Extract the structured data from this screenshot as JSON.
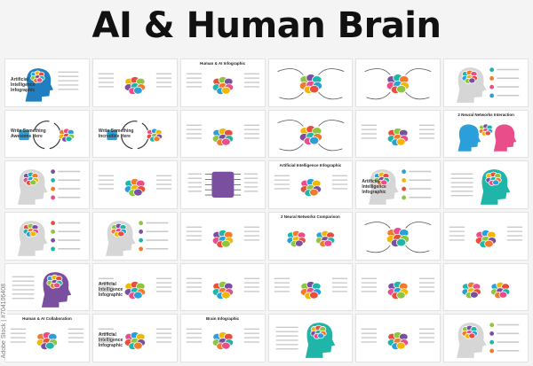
{
  "header": {
    "title": "AI & Human Brain"
  },
  "watermark": "Adobe Stock | #704106408",
  "palette": [
    "#2b9fd9",
    "#f2b705",
    "#e94e3c",
    "#8cc63f",
    "#7b4fa0",
    "#1fb5a8",
    "#f07b2a",
    "#e94d8a"
  ],
  "cells": [
    {
      "motif": "head-blue",
      "title": "",
      "side": "Artificial Intelligence Infographic"
    },
    {
      "motif": "brain-color",
      "title": "",
      "side": ""
    },
    {
      "motif": "brain-color",
      "title": "Human & AI Infographic",
      "side": ""
    },
    {
      "motif": "brain-center",
      "title": "",
      "side": ""
    },
    {
      "motif": "brain-center",
      "title": "",
      "side": ""
    },
    {
      "motif": "head-gray",
      "title": "",
      "side": ""
    },
    {
      "motif": "brain-circle",
      "title": "",
      "side": "Write Something Awesome Here"
    },
    {
      "motif": "brain-circle",
      "title": "",
      "side": "Write Something Incredible Here"
    },
    {
      "motif": "brain-color",
      "title": "",
      "side": ""
    },
    {
      "motif": "brain-center",
      "title": "",
      "side": ""
    },
    {
      "motif": "brain-color",
      "title": "",
      "side": ""
    },
    {
      "motif": "two-heads",
      "title": "2 Neural Networks Interaction",
      "side": ""
    },
    {
      "motif": "head-gray",
      "title": "",
      "side": ""
    },
    {
      "motif": "brain-color",
      "title": "",
      "side": ""
    },
    {
      "motif": "chip",
      "title": "",
      "side": ""
    },
    {
      "motif": "brain-color",
      "title": "Artificial Intelligence Infographic",
      "side": ""
    },
    {
      "motif": "head-gray",
      "title": "",
      "side": "Artificial Intelligence Infographic"
    },
    {
      "motif": "head-color",
      "title": "",
      "side": ""
    },
    {
      "motif": "head-gray",
      "title": "",
      "side": ""
    },
    {
      "motif": "head-gray",
      "title": "",
      "side": ""
    },
    {
      "motif": "brain-color",
      "title": "",
      "side": ""
    },
    {
      "motif": "two-brains",
      "title": "2 Neural Networks Comparison",
      "side": ""
    },
    {
      "motif": "brain-center",
      "title": "",
      "side": ""
    },
    {
      "motif": "brain-color",
      "title": "",
      "side": ""
    },
    {
      "motif": "head-color",
      "title": "",
      "side": ""
    },
    {
      "motif": "brain-color",
      "title": "",
      "side": "Artificial Intelligence Infographic"
    },
    {
      "motif": "brain-color",
      "title": "",
      "side": ""
    },
    {
      "motif": "brain-color",
      "title": "",
      "side": ""
    },
    {
      "motif": "brain-color",
      "title": "",
      "side": ""
    },
    {
      "motif": "two-brains",
      "title": "",
      "side": ""
    },
    {
      "motif": "brain-color",
      "title": "Human & AI Collaboration",
      "side": ""
    },
    {
      "motif": "brain-color",
      "title": "",
      "side": "Artificial Intelligence Infographic"
    },
    {
      "motif": "brain-color",
      "title": "Brain Infographic",
      "side": ""
    },
    {
      "motif": "head-color",
      "title": "",
      "side": ""
    },
    {
      "motif": "brain-color",
      "title": "",
      "side": ""
    },
    {
      "motif": "head-gray",
      "title": "",
      "side": ""
    }
  ]
}
